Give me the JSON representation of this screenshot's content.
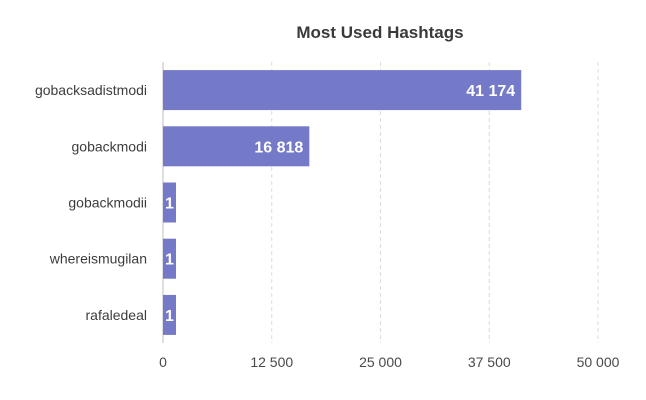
{
  "chart_data": {
    "type": "bar",
    "orientation": "horizontal",
    "title": "Most Used Hashtags",
    "categories": [
      "gobacksadistmodi",
      "gobackmodi",
      "gobackmodii",
      "whereismugilan",
      "rafaledeal"
    ],
    "values": [
      41174,
      16818,
      1,
      1,
      1
    ],
    "value_labels": [
      "41 174",
      "16 818",
      "1",
      "1",
      "1"
    ],
    "xlim": [
      0,
      50000
    ],
    "xticks": [
      0,
      12500,
      25000,
      37500,
      50000
    ],
    "xtick_labels": [
      "0",
      "12 500",
      "25 000",
      "37 500",
      "50 000"
    ],
    "xlabel": "",
    "ylabel": "",
    "grid": true,
    "bar_color": "#7479c8"
  }
}
